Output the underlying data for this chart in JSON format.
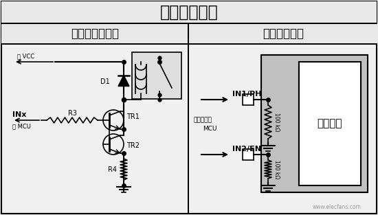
{
  "title": "数字控制接口",
  "left_title": "继电器解决方案",
  "right_title": "固态解决方案",
  "digital_core": "数字内核",
  "zhi_vcc": "至 VCC",
  "zhi_mcu": "至 MCU",
  "direct_connect": "直接连接到",
  "mcu_label": "MCU",
  "bg_color": "#f0f0f0",
  "header_color": "#e8e8e8",
  "relay_box_color": "#dedede",
  "digital_box_color": "#c0c0c0",
  "white": "#ffffff",
  "watermark": "www.elecfans.com"
}
